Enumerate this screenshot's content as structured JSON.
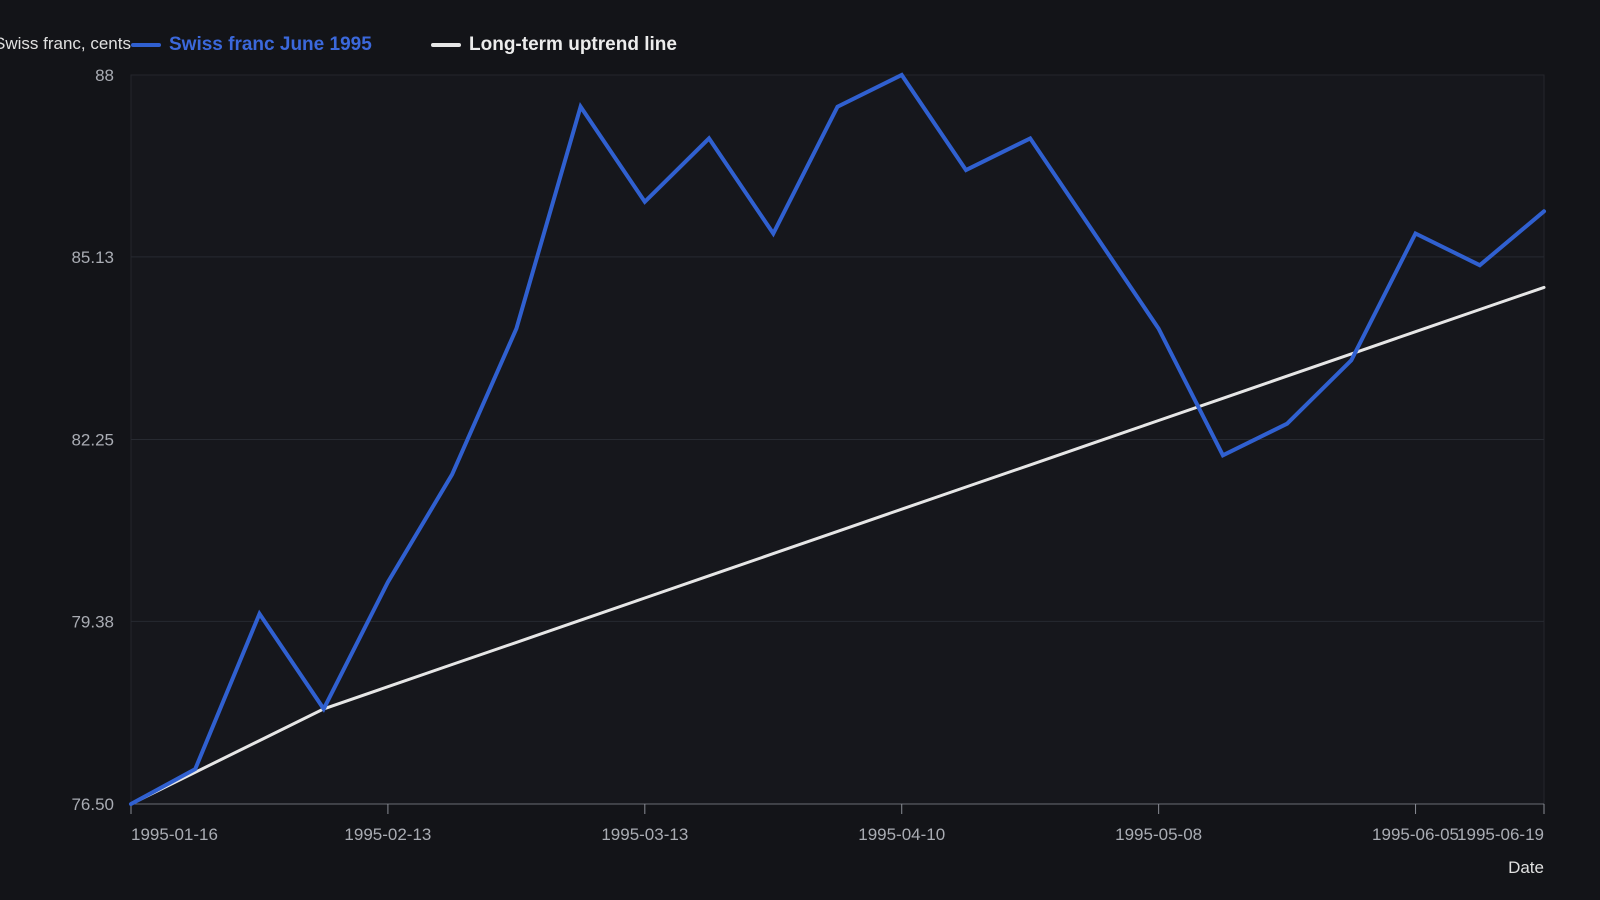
{
  "chart_data": {
    "type": "line",
    "title": "",
    "xlabel": "Date",
    "ylabel": "Swiss franc, cents",
    "ylim": [
      76.5,
      88
    ],
    "yticks": [
      "76.50",
      "79.38",
      "82.25",
      "85.13",
      "88"
    ],
    "xticks": [
      "1995-01-16",
      "1995-02-13",
      "1995-03-13",
      "1995-04-10",
      "1995-05-08",
      "1995-06-05",
      "1995-06-19"
    ],
    "x": [
      "1995-01-16",
      "1995-01-23",
      "1995-01-30",
      "1995-02-06",
      "1995-02-13",
      "1995-02-20",
      "1995-02-27",
      "1995-03-06",
      "1995-03-13",
      "1995-03-20",
      "1995-03-27",
      "1995-04-03",
      "1995-04-10",
      "1995-04-17",
      "1995-04-24",
      "1995-05-01",
      "1995-05-08",
      "1995-05-15",
      "1995-05-22",
      "1995-05-29",
      "1995-06-05",
      "1995-06-12",
      "1995-06-19"
    ],
    "series": [
      {
        "name": "Swiss franc June 1995",
        "color": "#3060d0",
        "values": [
          76.5,
          77.05,
          79.5,
          78.0,
          80.0,
          81.7,
          84.0,
          87.5,
          86.0,
          87.0,
          85.5,
          87.5,
          88.0,
          86.5,
          87.0,
          85.5,
          84.0,
          82.0,
          82.5,
          83.5,
          85.5,
          85.0,
          85.85
        ]
      },
      {
        "name": "Long-term uptrend line",
        "color": "#e6e6e6",
        "values": [
          76.5,
          77.0,
          77.5,
          78.0,
          78.35,
          78.7,
          79.05,
          79.4,
          79.75,
          80.1,
          80.45,
          80.8,
          81.15,
          81.5,
          81.85,
          82.2,
          82.55,
          82.9,
          83.25,
          83.6,
          83.95,
          84.3,
          84.65
        ]
      }
    ],
    "grid": true,
    "legend_position": "top"
  }
}
